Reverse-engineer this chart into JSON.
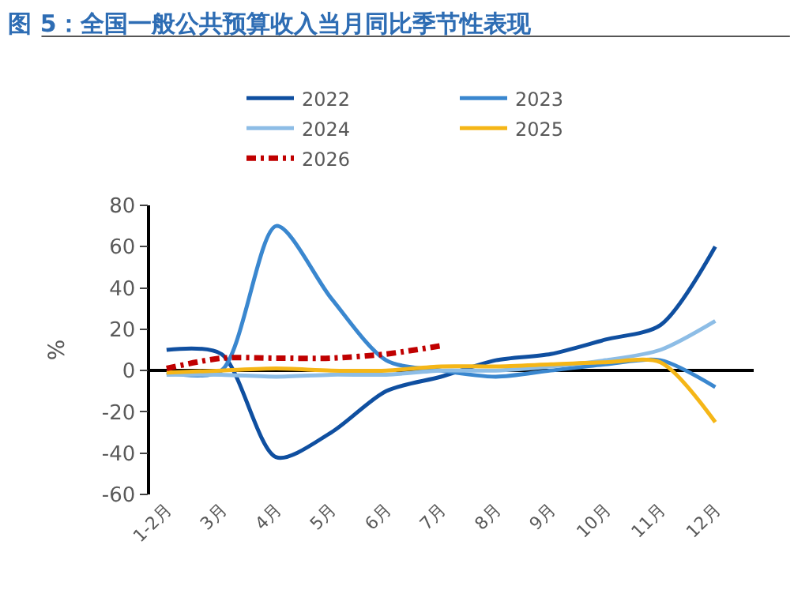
{
  "chart_data": {
    "type": "line",
    "title": "图 5：全国一般公共预算收入当月同比季节性表现",
    "ylabel": "%",
    "categories": [
      "1-2月",
      "3月",
      "4月",
      "5月",
      "6月",
      "7月",
      "8月",
      "9月",
      "10月",
      "11月",
      "12月"
    ],
    "series": [
      {
        "name": "2022",
        "color": "#0f4fa0",
        "values": [
          10,
          8,
          -42,
          -30,
          -10,
          -3,
          5,
          8,
          15,
          22,
          60
        ]
      },
      {
        "name": "2023",
        "color": "#3a87cf",
        "values": [
          -1,
          0,
          70,
          35,
          5,
          0,
          -3,
          0,
          3,
          5,
          -8
        ]
      },
      {
        "name": "2024",
        "color": "#8dbde6",
        "values": [
          -2,
          -2,
          -3,
          -2,
          -2,
          0,
          0,
          2,
          5,
          10,
          24
        ]
      },
      {
        "name": "2025",
        "color": "#f5b617",
        "values": [
          -1,
          0,
          1,
          0,
          0,
          2,
          2,
          3,
          4,
          4,
          -25
        ]
      },
      {
        "name": "2026",
        "color": "#c00000",
        "line_style": "dashdot",
        "values": [
          1,
          6,
          6,
          6,
          8,
          12,
          null,
          null,
          null,
          null,
          null
        ]
      }
    ],
    "ylim": [
      -60,
      80
    ],
    "yticks": [
      -60,
      -40,
      -20,
      0,
      20,
      40,
      60,
      80
    ],
    "legend": "top",
    "marker": "none"
  }
}
